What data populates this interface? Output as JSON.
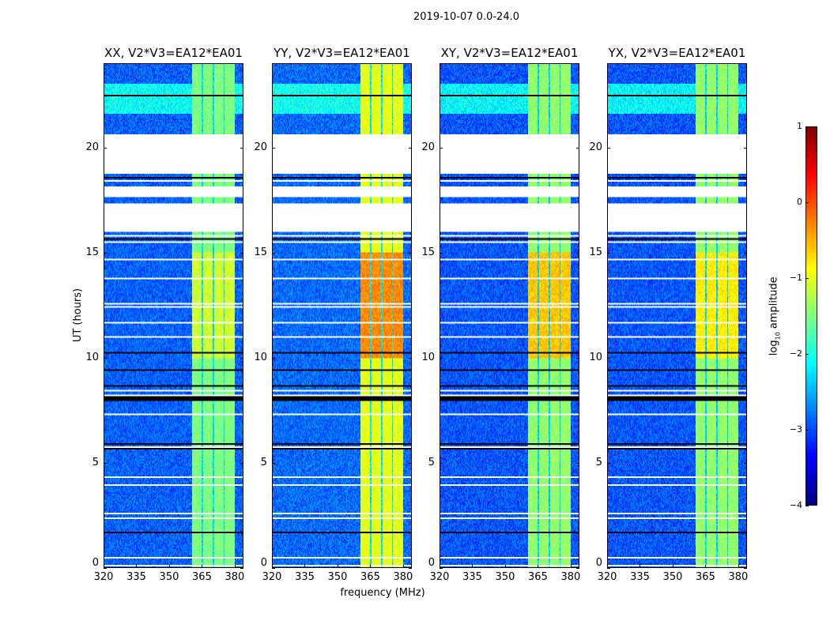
{
  "figure_title": "2019-10-07 0.0-24.0",
  "chart_data": {
    "type": "heatmap",
    "title": "2019-10-07 0.0-24.0",
    "xlabel": "frequency (MHz)",
    "ylabel": "UT (hours)",
    "xlim": [
      320,
      384
    ],
    "ylim": [
      0,
      24
    ],
    "xticks": [
      320,
      335,
      350,
      365,
      380
    ],
    "yticks": [
      0,
      5,
      10,
      15,
      20
    ],
    "colorbar": {
      "label_main": "log",
      "label_sub": "10",
      "label_rest": " amplitude",
      "range": [
        -4,
        1
      ],
      "ticks": [
        "1",
        "0",
        "−1",
        "−2",
        "−3",
        "−4"
      ],
      "colormap": "jet"
    },
    "panels": [
      {
        "title": "XX, V2*V3=EA12*EA01",
        "background_level": -2.9,
        "band_level": -1.5,
        "band_peak_level": -1.1
      },
      {
        "title": "YY, V2*V3=EA12*EA01",
        "background_level": -2.85,
        "band_level": -1.0,
        "band_peak_level": -0.3
      },
      {
        "title": "XY, V2*V3=EA12*EA01",
        "background_level": -2.95,
        "band_level": -1.4,
        "band_peak_level": -0.6
      },
      {
        "title": "YX, V2*V3=EA12*EA01",
        "background_level": -2.95,
        "band_level": -1.4,
        "band_peak_level": -0.8
      }
    ],
    "band_subbands_mhz": [
      [
        360.5,
        365
      ],
      [
        365.5,
        370
      ],
      [
        370.5,
        375
      ],
      [
        375.5,
        380
      ]
    ],
    "flagged_hours": [
      [
        18.75,
        20.6
      ],
      [
        17.65,
        18.15
      ],
      [
        16.0,
        17.35
      ]
    ],
    "rfi_bright_hours": [
      [
        21.6,
        23.0
      ]
    ]
  }
}
